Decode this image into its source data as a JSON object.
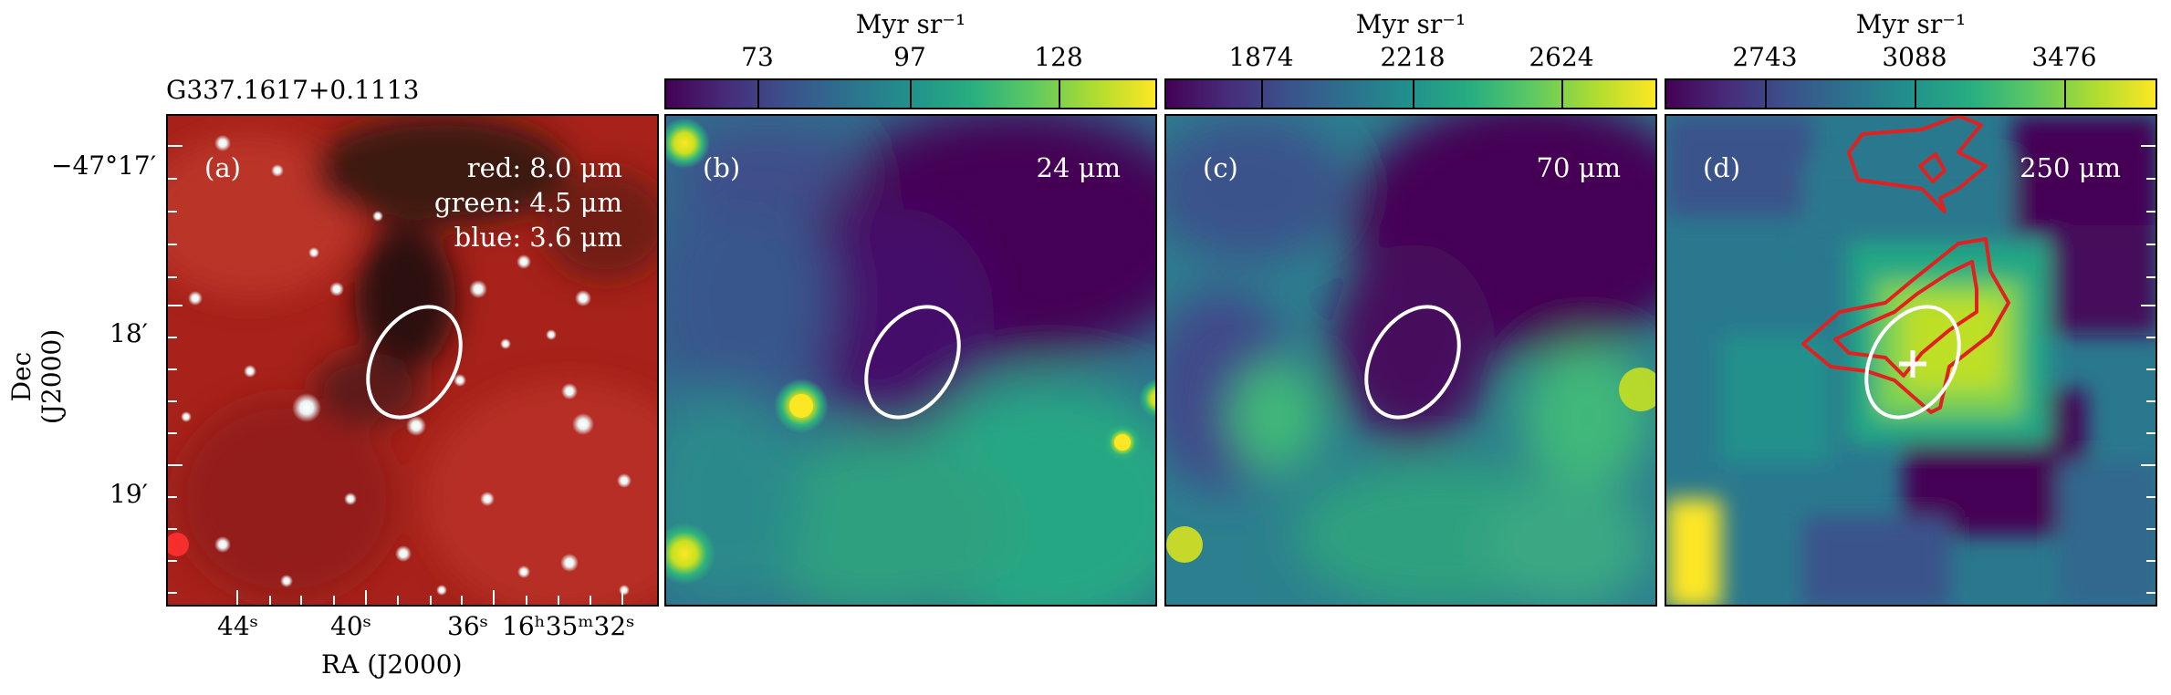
{
  "source_title": "G337.1617+0.1113",
  "panels": [
    {
      "label": "(a)",
      "lines": [
        "red: 8.0 μm",
        "green: 4.5 μm",
        "blue: 3.6 μm"
      ]
    },
    {
      "label": "(b)",
      "wavelength": "24 μm",
      "colorbar": {
        "unit": "Myr sr⁻¹",
        "ticks": [
          "73",
          "97",
          "128"
        ]
      }
    },
    {
      "label": "(c)",
      "wavelength": "70 μm",
      "colorbar": {
        "unit": "Myr sr⁻¹",
        "ticks": [
          "1874",
          "2218",
          "2624"
        ]
      }
    },
    {
      "label": "(d)",
      "wavelength": "250 μm",
      "colorbar": {
        "unit": "Myr sr⁻¹",
        "ticks": [
          "2743",
          "3088",
          "3476"
        ]
      }
    }
  ],
  "axes": {
    "ylabel": "Dec (J2000)",
    "xlabel": "RA (J2000)",
    "dec_ticks": [
      "−47°17′",
      "18′",
      "19′"
    ],
    "ra_ticks": [
      "44ˢ",
      "40ˢ",
      "36ˢ",
      "16ʰ35ᵐ32ˢ"
    ]
  },
  "colors": {
    "ellipse": "#ffffff",
    "contour": "#e0211f",
    "frame": "#000000"
  }
}
